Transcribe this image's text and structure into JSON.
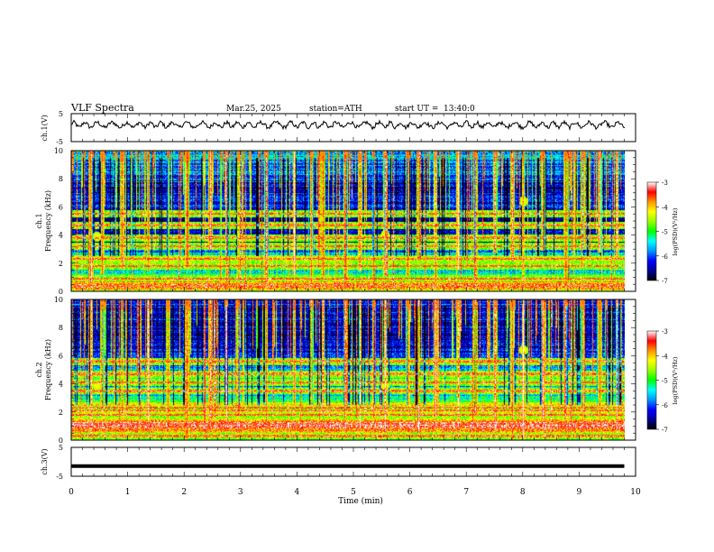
{
  "header": {
    "title": "VLF  Spectra",
    "date": "Mar.25, 2025",
    "station": "station=ATH",
    "start_label": "start  UT  =",
    "start_time": "13:40:0"
  },
  "chart_data": [
    {
      "type": "line",
      "panel": "ch1-waveform",
      "ylabel": "ch.1(V)",
      "ylim": [
        -5,
        5
      ],
      "yticks": [
        "5",
        "-5"
      ],
      "xlim": [
        0,
        10
      ],
      "signal": "noisy oscillation, amplitude approx 1 V, centred near +1 V"
    },
    {
      "type": "heatmap",
      "panel": "ch1-spectrogram",
      "ylabel": "ch.1\nFrequency (kHz)",
      "ylim": [
        0,
        10
      ],
      "yticks": [
        "0",
        "2",
        "4",
        "6",
        "8",
        "10"
      ],
      "xlim": [
        0,
        9.8
      ],
      "background_level": [
        [
          0,
          -4.2
        ],
        [
          0.5,
          -3.4
        ],
        [
          1.0,
          -5.2
        ],
        [
          1.7,
          -5.6
        ],
        [
          2.3,
          -4.3
        ],
        [
          3.0,
          -6.2
        ],
        [
          3.6,
          -6.6
        ],
        [
          4.3,
          -6.3
        ],
        [
          5.0,
          -6.5
        ],
        [
          6.0,
          -6.2
        ],
        [
          7.0,
          -6.4
        ],
        [
          8.0,
          -6.2
        ],
        [
          9.0,
          -5.8
        ],
        [
          10.0,
          -5.5
        ]
      ],
      "tones_kHz": [
        0.3,
        0.9,
        1.8,
        2.3,
        3.2,
        3.8,
        4.7,
        5.5
      ],
      "sferic_times_min": [
        0.35,
        0.55,
        0.9,
        1.35,
        1.7,
        2.05,
        2.45,
        2.75,
        2.95,
        3.45,
        3.95,
        4.25,
        4.45,
        4.85,
        5.1,
        5.35,
        5.55,
        5.95,
        6.15,
        6.45,
        6.85,
        7.15,
        7.5,
        7.8,
        8.0,
        8.35,
        8.75,
        9.05,
        9.35,
        9.65
      ],
      "blobs": [
        {
          "t": 0.45,
          "f": 3.9
        },
        {
          "t": 5.55,
          "f": 4.0
        },
        {
          "t": 8.0,
          "f": 6.4
        }
      ]
    },
    {
      "type": "heatmap",
      "panel": "ch2-spectrogram",
      "ylabel": "ch.2\nFrequency (kHz)",
      "ylim": [
        0,
        10
      ],
      "yticks": [
        "0",
        "2",
        "4",
        "6",
        "8",
        "10"
      ],
      "xlim": [
        0,
        9.8
      ],
      "background_level": [
        [
          0,
          -4.6
        ],
        [
          0.5,
          -4.5
        ],
        [
          0.8,
          -3.4
        ],
        [
          1.2,
          -3.3
        ],
        [
          1.7,
          -4.6
        ],
        [
          2.2,
          -4.6
        ],
        [
          2.6,
          -4.2
        ],
        [
          3.2,
          -5.8
        ],
        [
          3.5,
          -6.0
        ],
        [
          4.2,
          -5.0
        ],
        [
          4.6,
          -5.2
        ],
        [
          5.2,
          -5.8
        ],
        [
          5.8,
          -6.3
        ],
        [
          6.5,
          -6.4
        ],
        [
          7.5,
          -6.5
        ],
        [
          8.5,
          -6.4
        ],
        [
          10.0,
          -6.2
        ]
      ],
      "tones_kHz": [
        0.3,
        0.9,
        1.8,
        2.1,
        2.3,
        3.5,
        4.1,
        4.7,
        5.6
      ],
      "sferic_times_min": [
        0.35,
        0.55,
        0.9,
        1.35,
        1.7,
        2.05,
        2.45,
        2.75,
        2.95,
        3.45,
        3.95,
        4.25,
        4.45,
        4.85,
        5.1,
        5.35,
        5.55,
        5.95,
        6.15,
        6.45,
        6.85,
        7.15,
        7.5,
        7.8,
        8.0,
        8.35,
        8.75,
        9.05,
        9.35,
        9.65
      ],
      "blobs": [
        {
          "t": 0.45,
          "f": 3.9
        },
        {
          "t": 5.55,
          "f": 3.9
        },
        {
          "t": 8.0,
          "f": 6.4
        }
      ]
    },
    {
      "type": "line",
      "panel": "ch3-waveform",
      "ylabel": "ch.3(V)",
      "ylim": [
        -5,
        5
      ],
      "yticks": [
        "5",
        "-5"
      ],
      "xlim": [
        0,
        10
      ],
      "xlabel": "Time  (min)",
      "xticks": [
        "0",
        "1",
        "2",
        "3",
        "4",
        "5",
        "6",
        "7",
        "8",
        "9",
        "10"
      ],
      "signal": "flat thick line at about -1.5 V"
    }
  ],
  "colorbar": {
    "label": "log(PSD)(V²/Hz)",
    "range": [
      -7,
      -3
    ],
    "ticks": [
      "-3",
      "-4",
      "-5",
      "-6",
      "-7"
    ],
    "colors": [
      "#000000",
      "#000096",
      "#0000ff",
      "#0096ff",
      "#00ffff",
      "#00ff00",
      "#96ff00",
      "#ffff00",
      "#ff9600",
      "#ff0000",
      "#ffffff"
    ]
  }
}
